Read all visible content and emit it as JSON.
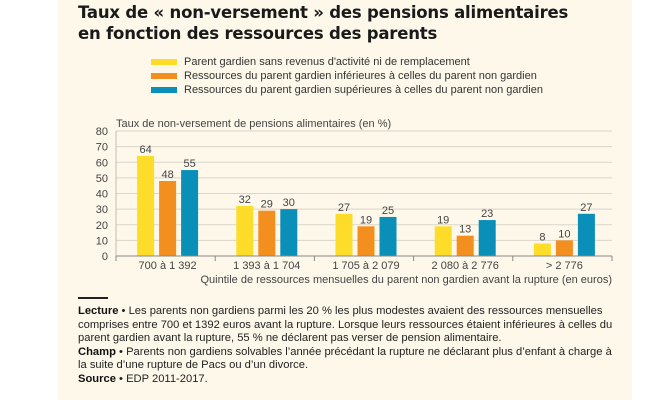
{
  "title_line1": "Taux de « non-versement » des pensions alimentaires",
  "title_line2": "en fonction des ressources des parents",
  "colors": {
    "panel": "#fdf8ea",
    "yellow": "#fedd2a",
    "orange": "#f38f1e",
    "blue": "#0a8fb8",
    "grid": "#d9d5c8"
  },
  "chart_data": {
    "type": "bar",
    "title": "Taux de « non-versement » des pensions alimentaires en fonction des ressources des parents",
    "ylabel": "Taux de non-versement de pensions alimentaires (en %)",
    "xlabel": "Quintile de ressources mensuelles du parent non gardien avant la rupture (en euros)",
    "categories": [
      "700 à 1 392",
      "1 393 à 1 704",
      "1 705 à 2 079",
      "2 080 à 2 776",
      "> 2 776"
    ],
    "series": [
      {
        "name": "Parent gardien sans revenus d'activité ni de remplacement",
        "color": "#fedd2a",
        "values": [
          64,
          32,
          27,
          19,
          8
        ]
      },
      {
        "name": "Ressources du parent gardien inférieures à celles du parent non gardien",
        "color": "#f38f1e",
        "values": [
          48,
          29,
          19,
          13,
          10
        ]
      },
      {
        "name": "Ressources du parent gardien supérieures à celles du parent non gardien",
        "color": "#0a8fb8",
        "values": [
          55,
          30,
          25,
          23,
          27
        ]
      }
    ],
    "ylim": [
      0,
      80
    ],
    "yticks": [
      0,
      10,
      20,
      30,
      40,
      50,
      60,
      70,
      80
    ],
    "grid": true,
    "legend_position": "top"
  },
  "notes": {
    "lecture_label": "Lecture",
    "lecture_text": "Les parents non gardiens parmi les 20 % les plus modestes avaient des ressources mensuelles comprises entre 700 et 1392 euros avant la rupture. Lorsque leurs ressources étaient inférieures à celles du parent gardien avant la rupture, 55 % ne déclarent pas verser de pension alimentaire.",
    "champ_label": "Champ",
    "champ_text": "Parents non gardiens solvables l’année précédant la rupture ne déclarant plus d’enfant à charge à la suite d’une rupture de Pacs ou d’un divorce.",
    "source_label": "Source",
    "source_text": "EDP 2011-2017.",
    "separator": " • "
  }
}
